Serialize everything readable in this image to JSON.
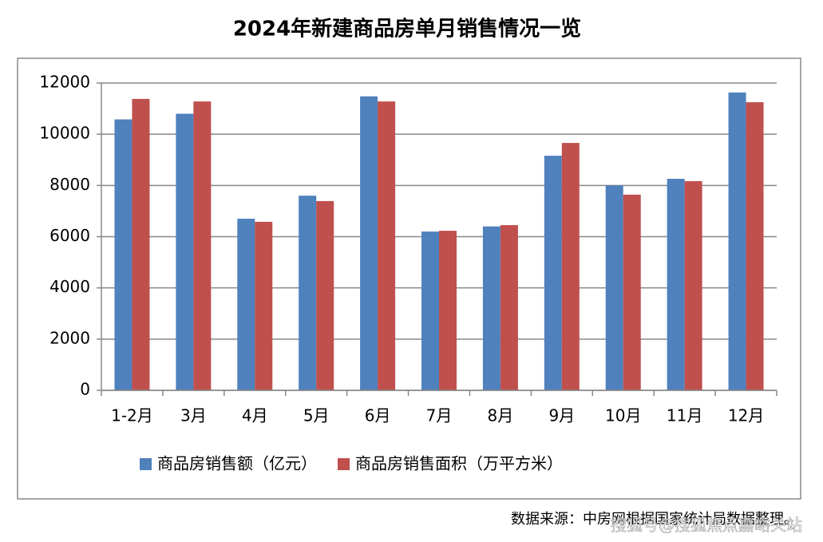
{
  "chart_data": {
    "type": "bar",
    "title": "2024年新建商品房单月销售情况一览",
    "categories": [
      "1-2月",
      "3月",
      "4月",
      "5月",
      "6月",
      "7月",
      "8月",
      "9月",
      "10月",
      "11月",
      "12月"
    ],
    "series": [
      {
        "name": "商品房销售额（亿元）",
        "color": "#4f81bd",
        "values": [
          10580,
          10800,
          6700,
          7600,
          11480,
          6200,
          6400,
          9160,
          8000,
          8260,
          11630
        ]
      },
      {
        "name": "商品房销售面积（万平方米）",
        "color": "#c0504d",
        "values": [
          11380,
          11280,
          6580,
          7390,
          11280,
          6230,
          6450,
          9660,
          7640,
          8170,
          11250
        ]
      }
    ],
    "ylim": [
      0,
      12000
    ],
    "yticks": [
      0,
      2000,
      4000,
      6000,
      8000,
      10000,
      12000
    ],
    "grid": true,
    "legend": "bottom",
    "source": "数据来源：中房网根据国家统计局数据整理。",
    "watermark": "搜狐号@搜狐焦点嘉峪关站"
  }
}
